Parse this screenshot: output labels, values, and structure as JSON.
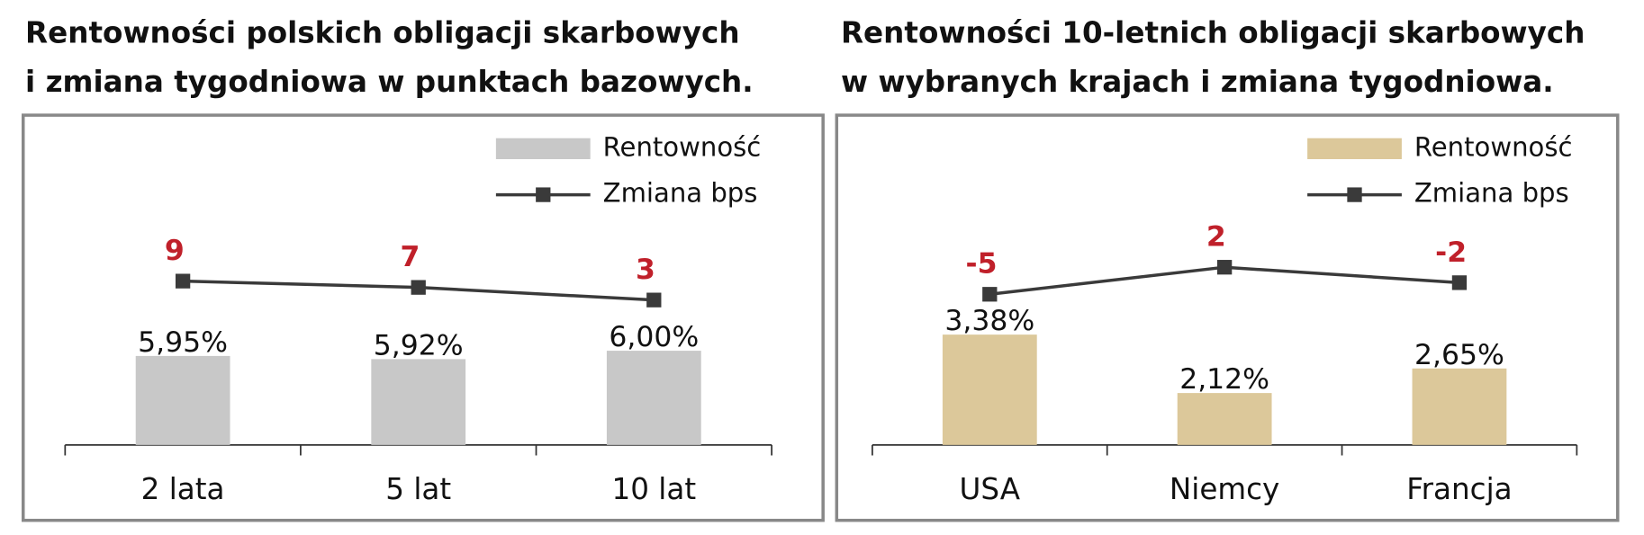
{
  "chart_data": [
    {
      "type": "bar",
      "title": [
        "Rentowności polskich obligacji skarbowych",
        "i zmiana tygodniowa w punktach bazowych."
      ],
      "categories": [
        "2 lata",
        "5 lat",
        "10 lat"
      ],
      "series": [
        {
          "name": "Rentowność",
          "type": "bar",
          "color": "#c8c8c8",
          "values": [
            5.95,
            5.92,
            6.0
          ],
          "value_labels": [
            "5,95%",
            "5,92%",
            "6,00%"
          ]
        },
        {
          "name": "Zmiana bps",
          "type": "line",
          "axis": "y2",
          "color": "#3a3a3a",
          "label_color": "#c0202a",
          "values": [
            9,
            7,
            3
          ]
        }
      ],
      "ylim": [
        5.1,
        8.2
      ],
      "y2lim": [
        -43,
        60
      ]
    },
    {
      "type": "bar",
      "title": [
        "Rentowności 10-letnich obligacji skarbowych",
        "w wybranych krajach i zmiana tygodniowa."
      ],
      "categories": [
        "USA",
        "Niemcy",
        "Francja"
      ],
      "series": [
        {
          "name": "Rentowność",
          "type": "bar",
          "color": "#dcc89a",
          "values": [
            3.38,
            2.12,
            2.65
          ],
          "value_labels": [
            "3,38%",
            "2,12%",
            "2,65%"
          ]
        },
        {
          "name": "Zmiana bps",
          "type": "line",
          "axis": "y2",
          "color": "#3a3a3a",
          "label_color": "#c0202a",
          "values": [
            -5,
            2,
            -2
          ]
        }
      ],
      "ylim": [
        1,
        8
      ],
      "y2lim": [
        -44,
        40
      ]
    }
  ]
}
